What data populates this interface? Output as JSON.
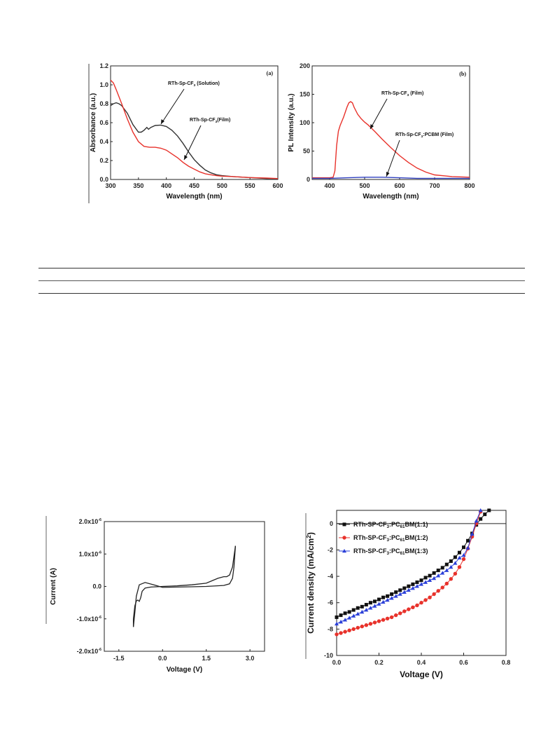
{
  "chart_data": [
    {
      "id": "a",
      "type": "line",
      "panel_label": "(a)",
      "xlabel": "Wavelength (nm)",
      "ylabel": "Absorbance (a.u.)",
      "xlim": [
        300,
        600
      ],
      "ylim": [
        0.0,
        1.2
      ],
      "xticks": [
        300,
        350,
        400,
        450,
        500,
        550,
        600
      ],
      "yticks": [
        0.0,
        0.2,
        0.4,
        0.6,
        0.8,
        1.0,
        1.2
      ],
      "ytick_labels": [
        "0.0",
        "0.2",
        "0.4",
        "0.6",
        "0.8",
        "1.0",
        "1.2"
      ],
      "series": [
        {
          "name": "RTh-Sp-CF3 (Solution)",
          "color": "#333333",
          "x": [
            300,
            305,
            310,
            315,
            320,
            330,
            340,
            350,
            355,
            360,
            365,
            368,
            372,
            380,
            390,
            400,
            410,
            420,
            430,
            440,
            450,
            460,
            470,
            480,
            490,
            500,
            520,
            550,
            580,
            600
          ],
          "y": [
            0.78,
            0.8,
            0.81,
            0.8,
            0.78,
            0.7,
            0.58,
            0.5,
            0.5,
            0.52,
            0.55,
            0.53,
            0.55,
            0.57,
            0.575,
            0.56,
            0.52,
            0.46,
            0.38,
            0.29,
            0.21,
            0.15,
            0.1,
            0.07,
            0.05,
            0.04,
            0.03,
            0.02,
            0.01,
            0.01
          ]
        },
        {
          "name": "RTh-Sp-CF3(Film)",
          "color": "#e8322b",
          "x": [
            300,
            305,
            310,
            320,
            330,
            340,
            350,
            360,
            370,
            380,
            390,
            400,
            410,
            420,
            430,
            440,
            450,
            460,
            470,
            480,
            490,
            500,
            520,
            550,
            580,
            600
          ],
          "y": [
            1.05,
            1.02,
            0.95,
            0.8,
            0.64,
            0.5,
            0.4,
            0.35,
            0.34,
            0.34,
            0.33,
            0.31,
            0.27,
            0.23,
            0.18,
            0.14,
            0.11,
            0.08,
            0.06,
            0.05,
            0.04,
            0.035,
            0.03,
            0.02,
            0.015,
            0.01
          ]
        }
      ],
      "annotations": [
        {
          "text_main": "RTh-Sp-CF",
          "sub": "3",
          "text_tail": " (Solution)"
        },
        {
          "text_main": "RTh-Sp-CF",
          "sub": "3",
          "text_tail": "(Film)"
        }
      ]
    },
    {
      "id": "b",
      "type": "line",
      "panel_label": "(b)",
      "xlabel": "Wavelength (nm)",
      "ylabel": "PL Intensity (a.u.)",
      "xlim": [
        350,
        800
      ],
      "ylim": [
        0,
        200
      ],
      "xticks": [
        400,
        500,
        600,
        700,
        800
      ],
      "yticks": [
        0,
        50,
        100,
        150,
        200
      ],
      "series": [
        {
          "name": "RTh-Sp-CF3 (Film)",
          "color": "#e8322b",
          "x": [
            350,
            400,
            410,
            415,
            420,
            425,
            430,
            440,
            450,
            455,
            460,
            465,
            470,
            480,
            490,
            500,
            510,
            520,
            530,
            550,
            575,
            600,
            625,
            650,
            675,
            700,
            750,
            800
          ],
          "y": [
            3,
            3,
            4,
            15,
            60,
            85,
            95,
            110,
            128,
            135,
            137,
            135,
            127,
            115,
            107,
            101,
            96,
            90,
            84,
            71,
            56,
            42,
            30,
            20,
            13,
            8,
            5,
            4
          ]
        },
        {
          "name": "RTh-Sp-CF3:PCBM (Film)",
          "color": "#2f3fbf",
          "x": [
            350,
            400,
            450,
            500,
            550,
            600,
            650,
            700,
            750,
            800
          ],
          "y": [
            2,
            2,
            3,
            4,
            4,
            3,
            2,
            2,
            2,
            2
          ]
        }
      ],
      "annotations": [
        {
          "text_main": "RTh-Sp-CF",
          "sub": "3",
          "text_tail": " (Film)"
        },
        {
          "text_main": "RTh-Sp-CF",
          "sub": "3",
          "text_tail": ":PCBM (Film)"
        }
      ]
    },
    {
      "id": "cv",
      "type": "line",
      "xlabel": "Voltage (V)",
      "ylabel": "Current (A)",
      "xlim": [
        -2.0,
        3.5
      ],
      "ylim": [
        -2e-06,
        2e-06
      ],
      "xticks": [
        -1.5,
        0.0,
        1.5,
        3.0
      ],
      "xtick_labels": [
        "-1.5",
        "0.0",
        "1.5",
        "3.0"
      ],
      "yticks": [
        -2e-06,
        -1e-06,
        0.0,
        1e-06,
        2e-06
      ],
      "ytick_mantissa": [
        "-2.0x10",
        "-1.0x10",
        "0.0",
        "1.0x10",
        "2.0x10"
      ],
      "ytick_exponent": "-6",
      "series": [
        {
          "name": "",
          "color": "#222222",
          "x": [
            -1.0,
            -1.0,
            -0.95,
            -0.9,
            -0.85,
            -0.8,
            -0.75,
            -0.7,
            -0.6,
            -0.4,
            -0.2,
            0.0,
            0.5,
            1.0,
            1.5,
            1.9,
            2.1,
            2.2,
            2.3,
            2.4,
            2.5
          ],
          "y": [
            -1.25e-06,
            -1e-06,
            -6e-07,
            -4.5e-07,
            -4.2e-07,
            -4.6e-07,
            -3.5e-07,
            -1.5e-07,
            -5e-08,
            -2e-08,
            -1e-08,
            0.0,
            2e-08,
            5e-08,
            1e-07,
            2.5e-07,
            3e-07,
            3e-07,
            3.5e-07,
            6e-07,
            1.25e-06
          ]
        },
        {
          "name": "",
          "color": "#222222",
          "x": [
            2.5,
            2.45,
            2.4,
            2.3,
            2.1,
            1.5,
            1.0,
            0.5,
            0.0,
            -0.3,
            -0.6,
            -0.8,
            -0.9,
            -0.95,
            -1.0
          ],
          "y": [
            1.25e-06,
            6e-07,
            2.5e-07,
            8e-08,
            3e-08,
            0.0,
            -1e-08,
            -2e-08,
            -3e-08,
            5e-08,
            1.2e-07,
            5e-08,
            -3e-07,
            -8e-07,
            -1.25e-06
          ]
        }
      ]
    },
    {
      "id": "jv",
      "type": "line",
      "xlabel": "Voltage (V)",
      "ylabel": "Current density (mA/cm²)",
      "ylabel_main": "Current density (mA/cm",
      "ylabel_sup": "2",
      "ylabel_tail": ")",
      "xlim": [
        0.0,
        0.8
      ],
      "ylim": [
        -10,
        1
      ],
      "xticks": [
        0.0,
        0.2,
        0.4,
        0.6,
        0.8
      ],
      "xtick_labels": [
        "0.0",
        "0.2",
        "0.4",
        "0.6",
        "0.8"
      ],
      "yticks": [
        -10,
        -8,
        -6,
        -4,
        -2,
        0
      ],
      "legend": [
        {
          "main": "RTh-SP-CF",
          "sub1": "3",
          "mid": ":PC",
          "sub2": "61",
          "tail": "BM(1:1)"
        },
        {
          "main": "RTh-SP-CF",
          "sub1": "3",
          "mid": ":PC",
          "sub2": "61",
          "tail": "BM(1:2)"
        },
        {
          "main": "RTh-SP-CF",
          "sub1": "3",
          "mid": ":PC",
          "sub2": "61",
          "tail": "BM(1:3)"
        }
      ],
      "legend_placement": "top-left",
      "series": [
        {
          "name": "RTh-SP-CF3:PC61BM(1:1)",
          "color": "#111111",
          "marker": "square",
          "x": [
            0.0,
            0.02,
            0.04,
            0.06,
            0.08,
            0.1,
            0.12,
            0.14,
            0.16,
            0.18,
            0.2,
            0.22,
            0.24,
            0.26,
            0.28,
            0.3,
            0.32,
            0.34,
            0.36,
            0.38,
            0.4,
            0.42,
            0.44,
            0.46,
            0.48,
            0.5,
            0.52,
            0.54,
            0.56,
            0.58,
            0.6,
            0.62,
            0.64,
            0.66,
            0.68,
            0.7,
            0.72
          ],
          "y": [
            -7.1,
            -6.95,
            -6.8,
            -6.7,
            -6.55,
            -6.4,
            -6.3,
            -6.15,
            -6.0,
            -5.9,
            -5.75,
            -5.6,
            -5.5,
            -5.35,
            -5.2,
            -5.05,
            -4.9,
            -4.75,
            -4.6,
            -4.45,
            -4.3,
            -4.1,
            -3.95,
            -3.75,
            -3.55,
            -3.35,
            -3.1,
            -2.85,
            -2.55,
            -2.2,
            -1.8,
            -1.3,
            -0.75,
            -0.1,
            0.35,
            0.7,
            1.0
          ]
        },
        {
          "name": "RTh-SP-CF3:PC61BM(1:2)",
          "color": "#e8322b",
          "marker": "circle",
          "x": [
            0.0,
            0.02,
            0.04,
            0.06,
            0.08,
            0.1,
            0.12,
            0.14,
            0.16,
            0.18,
            0.2,
            0.22,
            0.24,
            0.26,
            0.28,
            0.3,
            0.32,
            0.34,
            0.36,
            0.38,
            0.4,
            0.42,
            0.44,
            0.46,
            0.48,
            0.5,
            0.52,
            0.54,
            0.56,
            0.58,
            0.6,
            0.62,
            0.64,
            0.66,
            0.68
          ],
          "y": [
            -8.4,
            -8.3,
            -8.2,
            -8.1,
            -8.0,
            -7.9,
            -7.8,
            -7.7,
            -7.6,
            -7.5,
            -7.4,
            -7.3,
            -7.2,
            -7.1,
            -6.95,
            -6.8,
            -6.65,
            -6.5,
            -6.35,
            -6.2,
            -6.0,
            -5.8,
            -5.6,
            -5.35,
            -5.1,
            -4.85,
            -4.55,
            -4.2,
            -3.8,
            -3.3,
            -2.7,
            -1.9,
            -1.0,
            0.0,
            0.9
          ]
        },
        {
          "name": "RTh-SP-CF3:PC61BM(1:3)",
          "color": "#2a3fd8",
          "marker": "triangle",
          "x": [
            0.0,
            0.02,
            0.04,
            0.06,
            0.08,
            0.1,
            0.12,
            0.14,
            0.16,
            0.18,
            0.2,
            0.22,
            0.24,
            0.26,
            0.28,
            0.3,
            0.32,
            0.34,
            0.36,
            0.38,
            0.4,
            0.42,
            0.44,
            0.46,
            0.48,
            0.5,
            0.52,
            0.54,
            0.56,
            0.58,
            0.6,
            0.62,
            0.64,
            0.66,
            0.68
          ],
          "y": [
            -7.6,
            -7.45,
            -7.3,
            -7.15,
            -7.0,
            -6.85,
            -6.7,
            -6.55,
            -6.4,
            -6.25,
            -6.1,
            -5.95,
            -5.8,
            -5.65,
            -5.5,
            -5.35,
            -5.2,
            -5.05,
            -4.9,
            -4.75,
            -4.6,
            -4.45,
            -4.3,
            -4.15,
            -3.95,
            -3.75,
            -3.55,
            -3.3,
            -3.0,
            -2.6,
            -2.4,
            -1.85,
            -0.8,
            0.2,
            1.0
          ]
        }
      ]
    }
  ]
}
